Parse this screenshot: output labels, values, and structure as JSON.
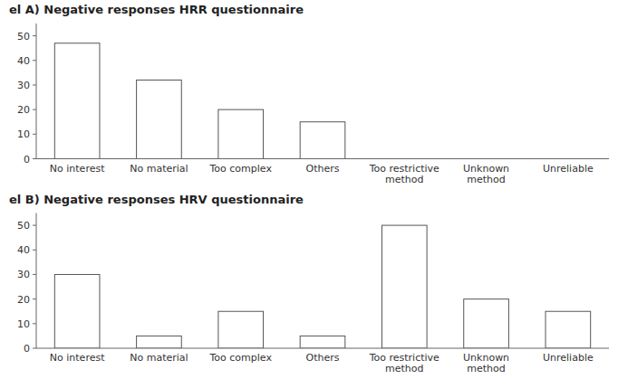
{
  "chart_data": [
    {
      "type": "bar",
      "title": "el A) Negative responses HRR questionnaire",
      "categories": [
        "No interest",
        "No material",
        "Too complex",
        "Others",
        "Too restrictive\nmethod",
        "Unknown\nmethod",
        "Unreliable"
      ],
      "values": [
        47,
        32,
        20,
        15,
        0,
        0,
        0
      ],
      "color": "#ffffff",
      "ylim": [
        0,
        55
      ],
      "yticks": [
        0,
        10,
        20,
        30,
        40,
        50
      ]
    },
    {
      "type": "bar",
      "title": "el B) Negative responses HRV questionnaire",
      "categories": [
        "No interest",
        "No material",
        "Too complex",
        "Others",
        "Too restrictive\nmethod",
        "Unknown\nmethod",
        "Unreliable"
      ],
      "values": [
        30,
        5,
        15,
        5,
        50,
        20,
        15
      ],
      "color": "#ffffff",
      "ylim": [
        0,
        55
      ],
      "yticks": [
        0,
        10,
        20,
        30,
        40,
        50
      ]
    }
  ]
}
